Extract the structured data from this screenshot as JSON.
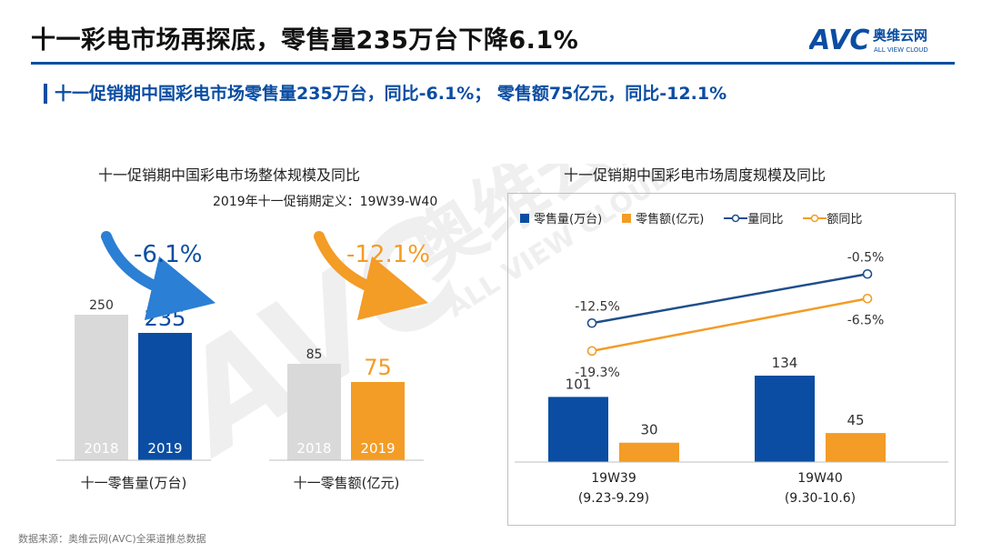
{
  "header": {
    "title": "十一彩电市场再探底，零售量235万台下降6.1%",
    "subtitle": "十一促销期中国彩电市场零售量235万台，同比-6.1%； 零售额75亿元，同比-12.1%"
  },
  "logo": {
    "mark": "AVC",
    "name_cn": "奥维云网",
    "name_en": "ALL VIEW CLOUD"
  },
  "watermark": {
    "mark": "AVC",
    "name_cn": "奥维云网",
    "name_en": "ALL VIEW CLOUD"
  },
  "colors": {
    "blue": "#0a4da2",
    "orange": "#f39c26",
    "gray": "#d9d9d9",
    "accent_blue": "#2b7fd4"
  },
  "left_panel": {
    "title": "十一促销期中国彩电市场整体规模及同比",
    "note": "2019年十一促销期定义：19W39-W40"
  },
  "right_panel": {
    "title": "十一促销期中国彩电市场周度规模及同比"
  },
  "chart_data": [
    {
      "type": "bar",
      "xlabel": "十一零售量(万台)",
      "categories": [
        "2018",
        "2019"
      ],
      "values": [
        250,
        235
      ],
      "change_label": "-6.1%",
      "colors": [
        "#d9d9d9",
        "#0a4da2"
      ]
    },
    {
      "type": "bar",
      "xlabel": "十一零售额(亿元)",
      "categories": [
        "2018",
        "2019"
      ],
      "values": [
        85,
        75
      ],
      "change_label": "-12.1%",
      "colors": [
        "#d9d9d9",
        "#f39c26"
      ]
    },
    {
      "type": "bar",
      "categories": [
        "19W39\n(9.23-9.29)",
        "19W40\n(9.30-10.6)"
      ],
      "category_names": [
        "19W39",
        "19W40"
      ],
      "category_ranges": [
        "(9.23-9.29)",
        "(9.30-10.6)"
      ],
      "series": [
        {
          "name": "零售量(万台)",
          "type": "bar",
          "values": [
            101,
            134
          ],
          "color": "#0a4da2"
        },
        {
          "name": "零售额(亿元)",
          "type": "bar",
          "values": [
            30,
            45
          ],
          "color": "#f39c26"
        },
        {
          "name": "量同比",
          "type": "line",
          "values": [
            -12.5,
            -0.5
          ],
          "labels": [
            "-12.5%",
            "-0.5%"
          ],
          "color": "#1f4e8c"
        },
        {
          "name": "额同比",
          "type": "line",
          "values": [
            -19.3,
            -6.5
          ],
          "labels": [
            "-19.3%",
            "-6.5%"
          ],
          "color": "#f39c26"
        }
      ],
      "legend": "top"
    }
  ],
  "footer": {
    "source": "数据来源：奥维云网(AVC)全渠道推总数据"
  }
}
